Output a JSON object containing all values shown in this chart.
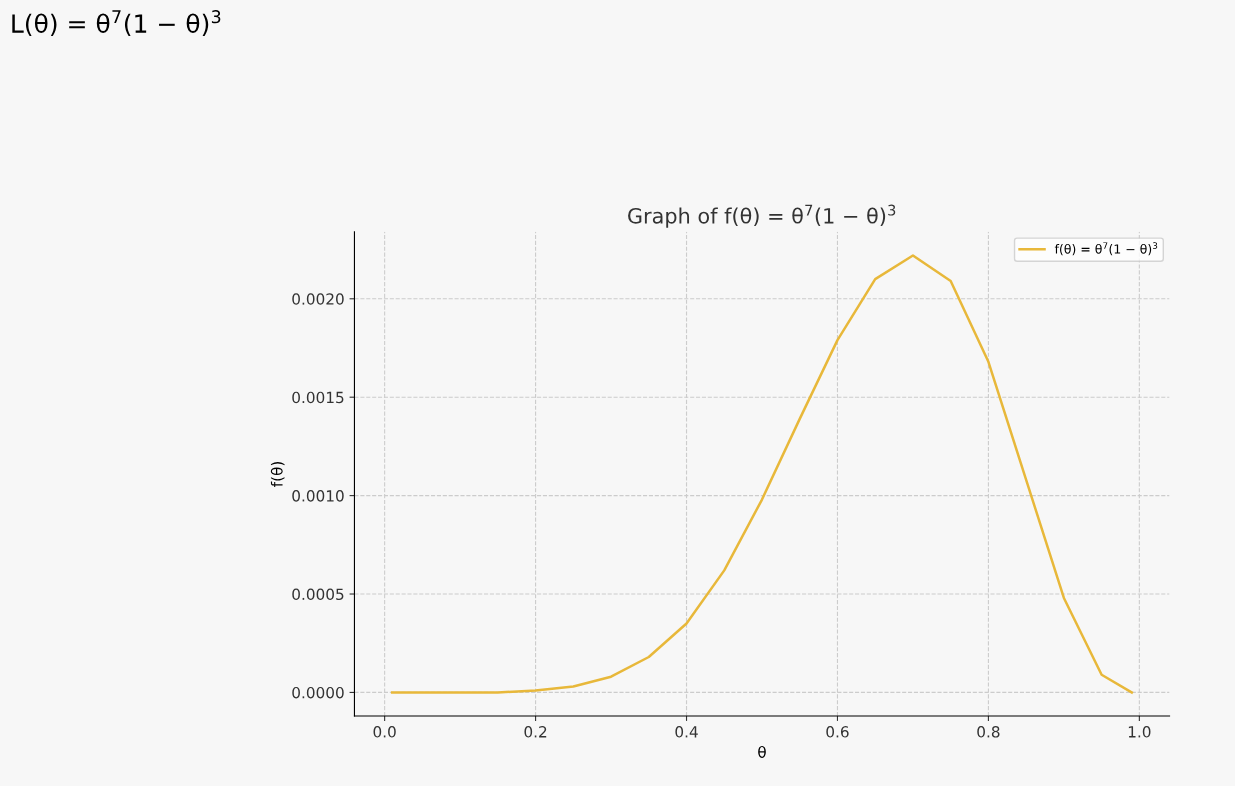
{
  "chart_data": {
    "type": "line",
    "title": "Graph of f(θ) = θ$^{7}$(1 − θ)$^{3}$",
    "xlabel": "θ",
    "ylabel": "f(θ)",
    "annotations": [
      "L(θ) = θ$^{7}$(1 − θ)$^{3}$"
    ],
    "x": [
      0.01,
      0.1,
      0.15,
      0.2,
      0.25,
      0.3,
      0.35,
      0.4,
      0.45,
      0.5,
      0.55,
      0.6,
      0.65,
      0.7,
      0.75,
      0.8,
      0.85,
      0.9,
      0.95,
      0.99
    ],
    "series": [
      {
        "name": "f(θ) = θ$^{7}$(1 − θ)$^{3}$",
        "color": "#e8b83a",
        "values": [
          0,
          0,
          0,
          1e-05,
          3e-05,
          8e-05,
          0.00018,
          0.00035,
          0.00062,
          0.00098,
          0.00139,
          0.00179,
          0.0021,
          0.00222,
          0.00209,
          0.00168,
          0.00108,
          0.00048,
          9e-05,
          0
        ]
      }
    ],
    "xlim": [
      -0.04,
      1.04
    ],
    "ylim": [
      -0.00012,
      0.00234
    ],
    "xticks": [
      {
        "value": 0,
        "label": "0.0"
      },
      0.2,
      0.4,
      0.6,
      0.8,
      {
        "value": 1,
        "label": "1.0"
      }
    ],
    "yticks": [
      {
        "value": 0,
        "label": "0.0000"
      },
      {
        "value": 0.0005,
        "label": "0.0005"
      },
      {
        "value": 0.001,
        "label": "0.0010"
      },
      {
        "value": 0.0015,
        "label": "0.0015"
      },
      {
        "value": 0.002,
        "label": "0.0020"
      }
    ],
    "grid": true,
    "legend": "top right",
    "marker": "none",
    "line_style": "solid"
  }
}
